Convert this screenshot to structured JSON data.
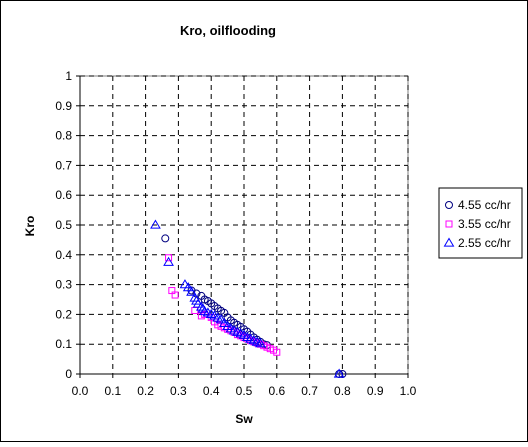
{
  "chart_data": {
    "type": "scatter",
    "title": "Kro, oilflooding",
    "xlabel": "Sw",
    "ylabel": "Kro",
    "xlim": [
      0,
      1
    ],
    "ylim": [
      0,
      1
    ],
    "xticks": [
      "0.0",
      "0.1",
      "0.2",
      "0.3",
      "0.4",
      "0.5",
      "0.6",
      "0.7",
      "0.8",
      "0.9",
      "1.0"
    ],
    "yticks": [
      "0",
      "0.1",
      "0.2",
      "0.3",
      "0.4",
      "0.5",
      "0.6",
      "0.7",
      "0.8",
      "0.9",
      "1"
    ],
    "grid": "dashed",
    "legend_position": "right",
    "series": [
      {
        "name": "4.55 cc/hr",
        "marker": "circle",
        "color": "#000080",
        "points": [
          [
            0.26,
            0.455
          ],
          [
            0.34,
            0.28
          ],
          [
            0.355,
            0.27
          ],
          [
            0.37,
            0.262
          ],
          [
            0.38,
            0.25
          ],
          [
            0.39,
            0.245
          ],
          [
            0.4,
            0.237
          ],
          [
            0.41,
            0.228
          ],
          [
            0.42,
            0.22
          ],
          [
            0.43,
            0.212
          ],
          [
            0.44,
            0.205
          ],
          [
            0.45,
            0.19
          ],
          [
            0.46,
            0.18
          ],
          [
            0.47,
            0.172
          ],
          [
            0.48,
            0.165
          ],
          [
            0.49,
            0.158
          ],
          [
            0.5,
            0.15
          ],
          [
            0.51,
            0.142
          ],
          [
            0.52,
            0.132
          ],
          [
            0.53,
            0.123
          ],
          [
            0.54,
            0.115
          ],
          [
            0.55,
            0.108
          ],
          [
            0.56,
            0.1
          ],
          [
            0.57,
            0.097
          ],
          [
            0.8,
            0.0
          ],
          [
            0.79,
            0.0
          ]
        ]
      },
      {
        "name": "3.55 cc/hr",
        "marker": "square",
        "color": "#ff00ff",
        "points": [
          [
            0.27,
            0.39
          ],
          [
            0.28,
            0.28
          ],
          [
            0.29,
            0.265
          ],
          [
            0.35,
            0.213
          ],
          [
            0.37,
            0.195
          ],
          [
            0.38,
            0.2
          ],
          [
            0.4,
            0.19
          ],
          [
            0.41,
            0.175
          ],
          [
            0.42,
            0.165
          ],
          [
            0.43,
            0.16
          ],
          [
            0.44,
            0.155
          ],
          [
            0.45,
            0.15
          ],
          [
            0.46,
            0.145
          ],
          [
            0.47,
            0.14
          ],
          [
            0.48,
            0.132
          ],
          [
            0.49,
            0.128
          ],
          [
            0.5,
            0.122
          ],
          [
            0.51,
            0.118
          ],
          [
            0.52,
            0.112
          ],
          [
            0.53,
            0.108
          ],
          [
            0.54,
            0.104
          ],
          [
            0.55,
            0.1
          ],
          [
            0.56,
            0.095
          ],
          [
            0.57,
            0.09
          ],
          [
            0.58,
            0.085
          ],
          [
            0.59,
            0.08
          ],
          [
            0.6,
            0.073
          ]
        ]
      },
      {
        "name": "2.55 cc/hr",
        "marker": "triangle",
        "color": "#0000ff",
        "points": [
          [
            0.23,
            0.5
          ],
          [
            0.27,
            0.375
          ],
          [
            0.32,
            0.3
          ],
          [
            0.33,
            0.29
          ],
          [
            0.34,
            0.275
          ],
          [
            0.35,
            0.255
          ],
          [
            0.355,
            0.245
          ],
          [
            0.36,
            0.235
          ],
          [
            0.37,
            0.225
          ],
          [
            0.375,
            0.218
          ],
          [
            0.38,
            0.21
          ],
          [
            0.39,
            0.205
          ],
          [
            0.4,
            0.2
          ],
          [
            0.41,
            0.195
          ],
          [
            0.42,
            0.188
          ],
          [
            0.43,
            0.182
          ],
          [
            0.44,
            0.17
          ],
          [
            0.45,
            0.16
          ],
          [
            0.46,
            0.152
          ],
          [
            0.47,
            0.145
          ],
          [
            0.48,
            0.14
          ],
          [
            0.49,
            0.135
          ],
          [
            0.5,
            0.13
          ],
          [
            0.51,
            0.123
          ],
          [
            0.52,
            0.117
          ],
          [
            0.53,
            0.112
          ],
          [
            0.54,
            0.107
          ],
          [
            0.55,
            0.102
          ],
          [
            0.79,
            0.0
          ]
        ]
      }
    ]
  }
}
